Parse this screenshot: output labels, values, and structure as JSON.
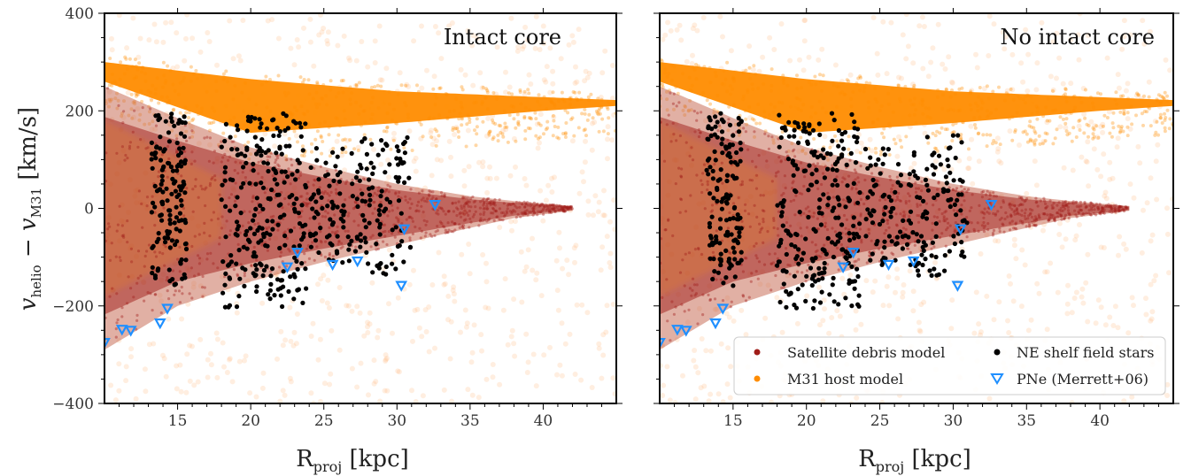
{
  "chart_data": [
    {
      "type": "scatter",
      "title": "Intact core",
      "xlabel": "R_proj [kpc]",
      "ylabel": "v_helio − v_M31 [km/s]",
      "xlim": [
        10,
        45
      ],
      "ylim": [
        -400,
        400
      ],
      "xticks": [
        15,
        20,
        25,
        30,
        35,
        40
      ],
      "yticks": [
        -400,
        -200,
        0,
        200,
        400
      ],
      "series": [
        {
          "name": "Satellite debris model",
          "color": "#a01c18",
          "kind": "density-region",
          "envelope": {
            "x": [
              10,
              15,
              20,
              25,
              30,
              35,
              38,
              42
            ],
            "upper": [
              250,
              185,
              125,
              85,
              50,
              25,
              15,
              5
            ],
            "lower": [
              -290,
              -200,
              -150,
              -110,
              -75,
              -40,
              -20,
              -5
            ]
          }
        },
        {
          "name": "M31 host model",
          "color": "#ff8c00",
          "kind": "density-region",
          "envelope": {
            "x": [
              10,
              20,
              30,
              40,
              45
            ],
            "upper": [
              300,
              265,
              240,
              228,
              222
            ],
            "lower": [
              260,
              155,
              175,
              200,
              210
            ]
          }
        },
        {
          "name": "NE shelf field stars",
          "color": "#000000",
          "kind": "points",
          "clusters": [
            {
              "x": [
                13.2,
                15.6
              ],
              "y": [
                -160,
                195
              ],
              "n": 140
            },
            {
              "x": [
                18.0,
                23.8
              ],
              "y": [
                -205,
                195
              ],
              "n": 230
            },
            {
              "x": [
                24.0,
                27.5
              ],
              "y": [
                -120,
                130
              ],
              "n": 80
            },
            {
              "x": [
                27.5,
                31.0
              ],
              "y": [
                -140,
                150
              ],
              "n": 90
            }
          ]
        },
        {
          "name": "PNe (Merrett+06)",
          "color": "#1f8fff",
          "kind": "points",
          "x": [
            10.0,
            11.2,
            11.8,
            13.8,
            14.3,
            22.5,
            23.2,
            25.6,
            27.3,
            30.3,
            30.5,
            32.6
          ],
          "y": [
            -275,
            -248,
            -250,
            -235,
            -205,
            -120,
            -90,
            -115,
            -108,
            -158,
            -42,
            8
          ]
        }
      ]
    },
    {
      "type": "scatter",
      "title": "No intact core",
      "xlabel": "R_proj [kpc]",
      "ylabel": "",
      "xlim": [
        10,
        45
      ],
      "ylim": [
        -400,
        400
      ],
      "xticks": [
        15,
        20,
        25,
        30,
        35,
        40
      ],
      "yticks": [
        -400,
        -200,
        0,
        200,
        400
      ],
      "legend_position": "lower-right",
      "series": [
        {
          "name": "Satellite debris model",
          "color": "#a01c18",
          "kind": "density-region",
          "envelope": {
            "x": [
              10,
              15,
              20,
              25,
              30,
              35,
              38,
              42
            ],
            "upper": [
              250,
              185,
              125,
              85,
              50,
              25,
              15,
              5
            ],
            "lower": [
              -290,
              -200,
              -150,
              -110,
              -75,
              -40,
              -20,
              -5
            ]
          }
        },
        {
          "name": "M31 host model",
          "color": "#ff8c00",
          "kind": "density-region",
          "envelope": {
            "x": [
              10,
              20,
              30,
              40,
              45
            ],
            "upper": [
              300,
              265,
              240,
              228,
              222
            ],
            "lower": [
              260,
              155,
              175,
              200,
              210
            ]
          }
        },
        {
          "name": "NE shelf field stars",
          "color": "#000000",
          "kind": "points",
          "clusters": [
            {
              "x": [
                13.2,
                15.6
              ],
              "y": [
                -160,
                195
              ],
              "n": 140
            },
            {
              "x": [
                18.0,
                23.8
              ],
              "y": [
                -205,
                195
              ],
              "n": 230
            },
            {
              "x": [
                24.0,
                27.5
              ],
              "y": [
                -120,
                130
              ],
              "n": 80
            },
            {
              "x": [
                27.5,
                31.0
              ],
              "y": [
                -140,
                150
              ],
              "n": 90
            }
          ]
        },
        {
          "name": "PNe (Merrett+06)",
          "color": "#1f8fff",
          "kind": "points",
          "x": [
            10.0,
            11.2,
            11.8,
            13.8,
            14.3,
            22.5,
            23.2,
            25.6,
            27.3,
            30.3,
            30.5,
            32.6
          ],
          "y": [
            -275,
            -248,
            -250,
            -235,
            -205,
            -120,
            -90,
            -115,
            -108,
            -158,
            -42,
            8
          ]
        }
      ]
    }
  ],
  "legend": {
    "items": [
      {
        "label": "Satellite debris model",
        "color": "#a01c18",
        "marker": "dot"
      },
      {
        "label": "NE shelf field stars",
        "color": "#000000",
        "marker": "dot"
      },
      {
        "label": "M31 host model",
        "color": "#ff8c00",
        "marker": "dot"
      },
      {
        "label": "PNe (Merrett+06)",
        "color": "#1f8fff",
        "marker": "triangle-down"
      }
    ]
  }
}
